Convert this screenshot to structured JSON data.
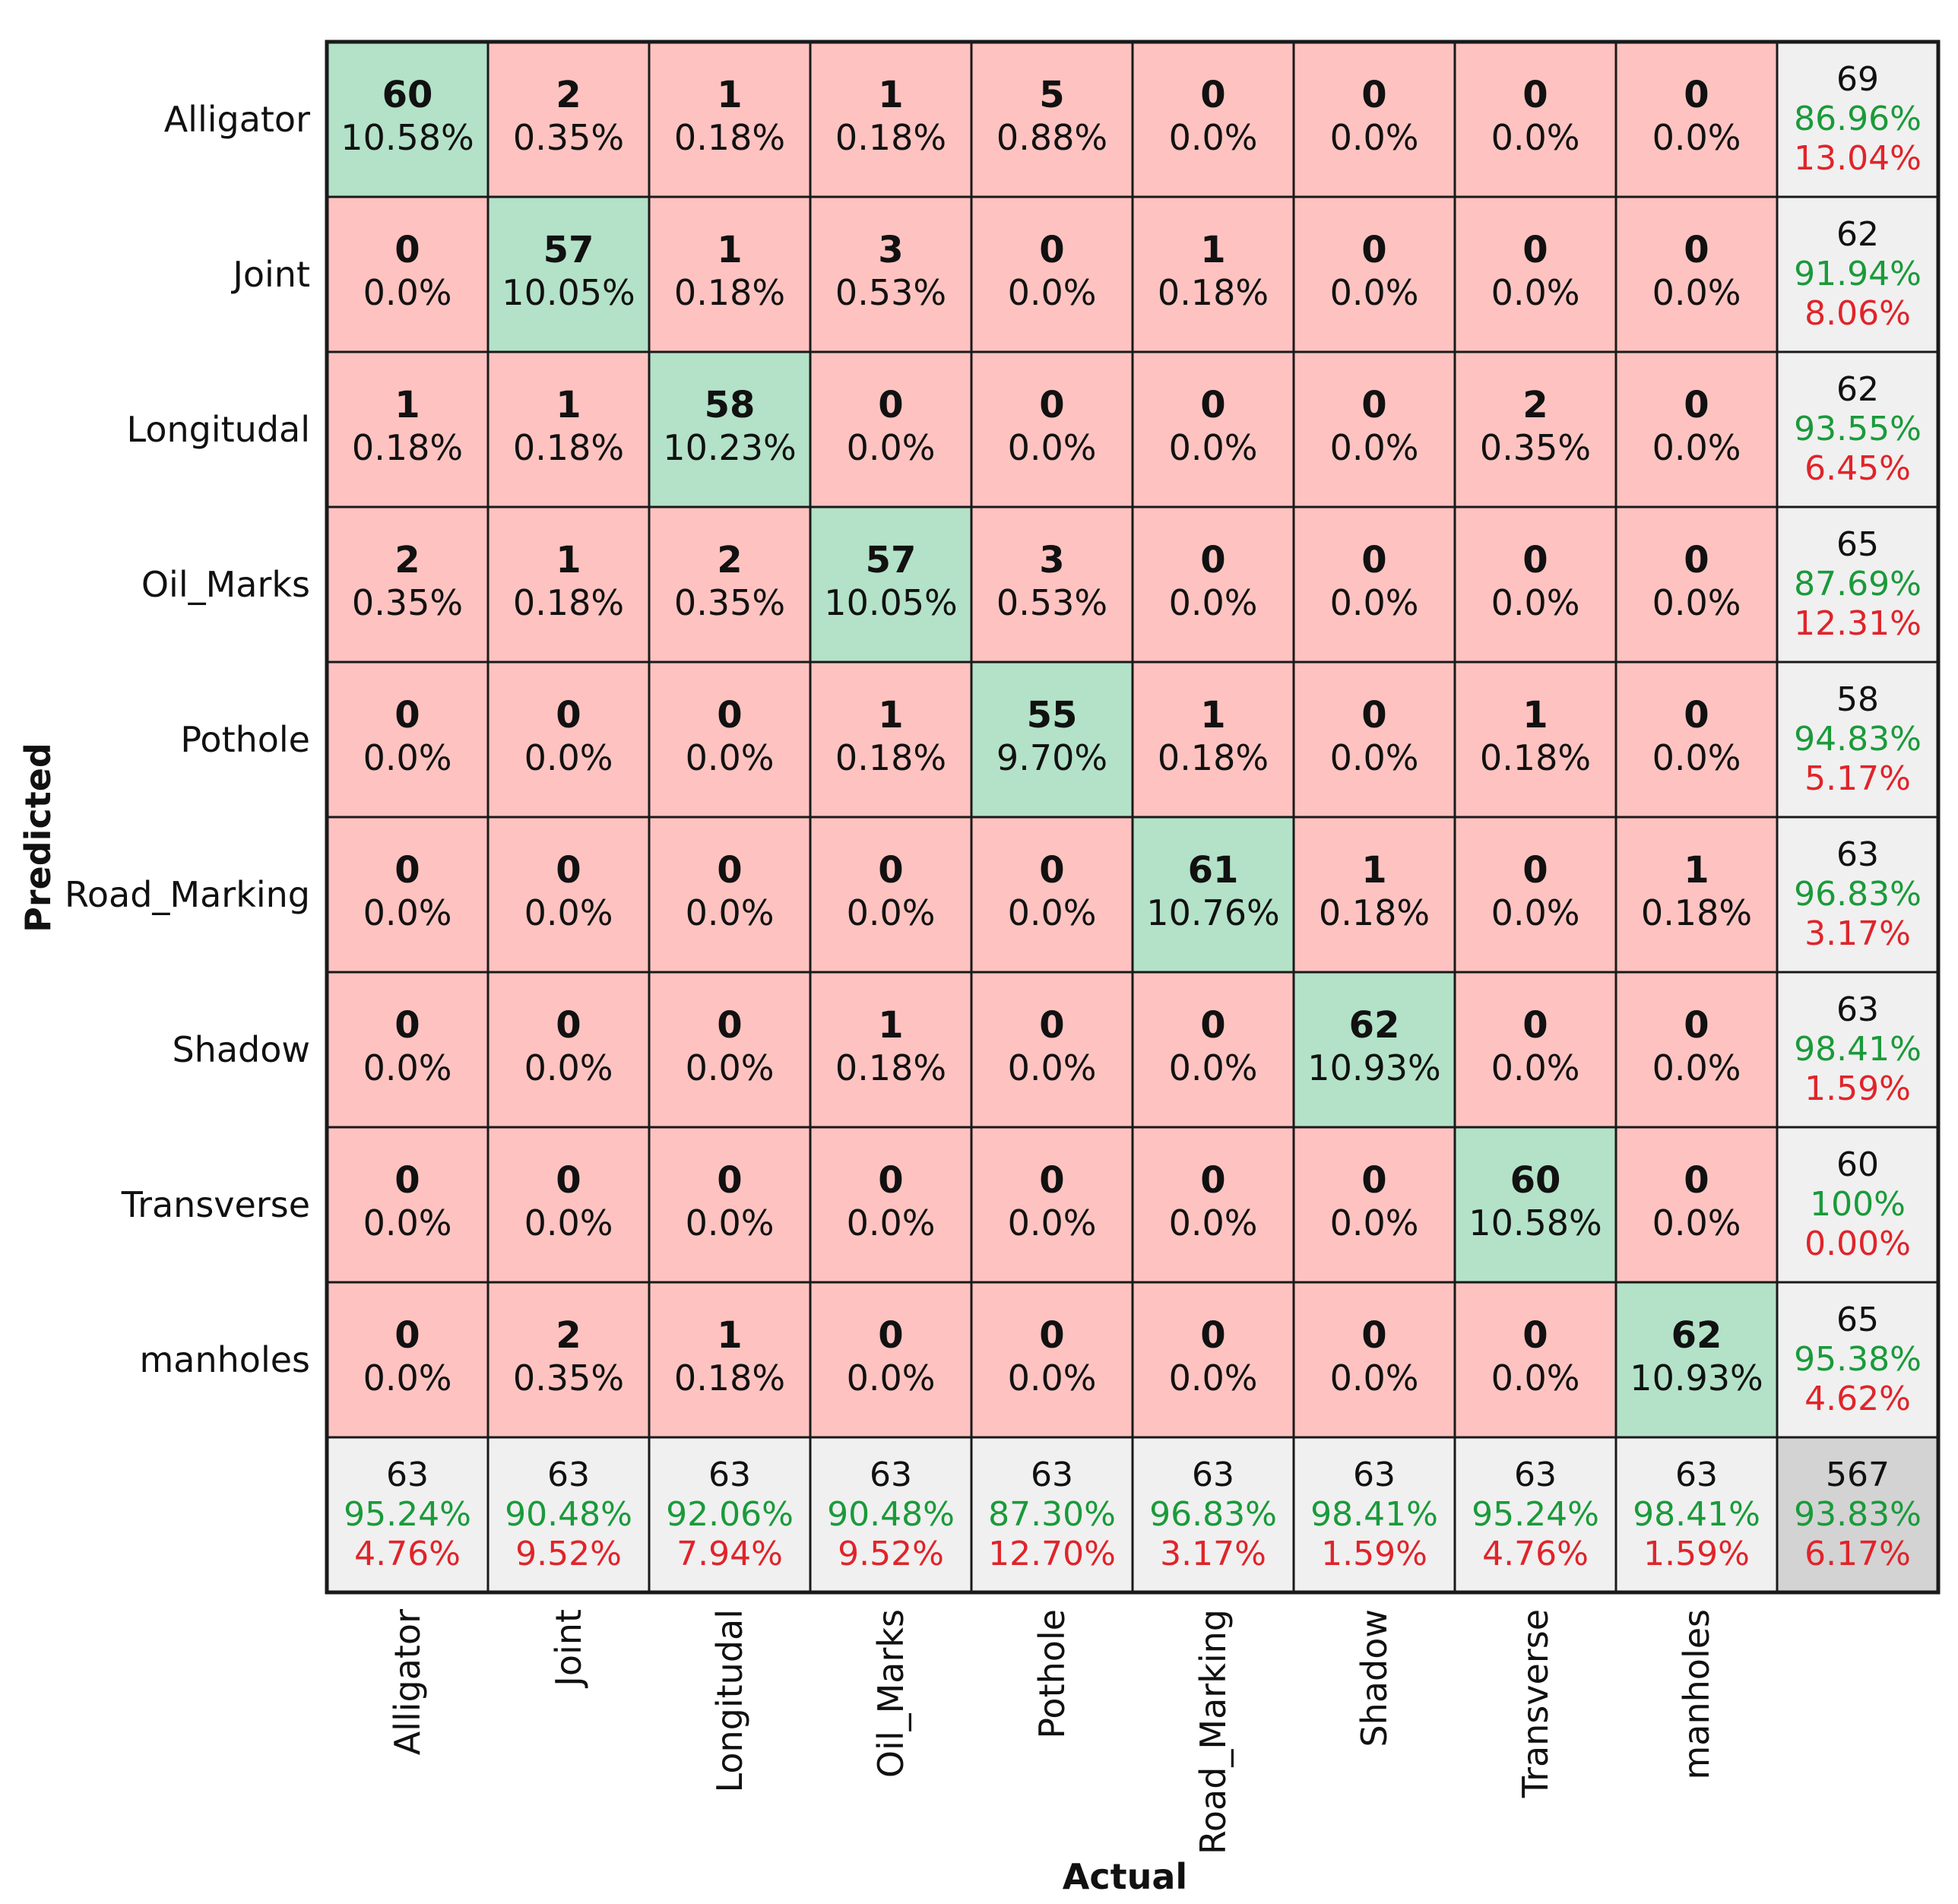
{
  "chart_data": {
    "type": "heatmap",
    "subtype": "confusion-matrix",
    "title": "",
    "xlabel": "Actual",
    "ylabel": "Predicted",
    "labels": [
      "Alligator",
      "Joint",
      "Longitudal",
      "Oil_Marks",
      "Pothole",
      "Road_Marking",
      "Shadow",
      "Transverse",
      "manholes"
    ],
    "matrix": [
      [
        60,
        2,
        1,
        1,
        5,
        0,
        0,
        0,
        0
      ],
      [
        0,
        57,
        1,
        3,
        0,
        1,
        0,
        0,
        0
      ],
      [
        1,
        1,
        58,
        0,
        0,
        0,
        0,
        2,
        0
      ],
      [
        2,
        1,
        2,
        57,
        3,
        0,
        0,
        0,
        0
      ],
      [
        0,
        0,
        0,
        1,
        55,
        1,
        0,
        1,
        0
      ],
      [
        0,
        0,
        0,
        0,
        0,
        61,
        1,
        0,
        1
      ],
      [
        0,
        0,
        0,
        1,
        0,
        0,
        62,
        0,
        0
      ],
      [
        0,
        0,
        0,
        0,
        0,
        0,
        0,
        60,
        0
      ],
      [
        0,
        2,
        1,
        0,
        0,
        0,
        0,
        0,
        62
      ]
    ],
    "cell_percents": [
      [
        "10.58%",
        "0.35%",
        "0.18%",
        "0.18%",
        "0.88%",
        "0.0%",
        "0.0%",
        "0.0%",
        "0.0%"
      ],
      [
        "0.0%",
        "10.05%",
        "0.18%",
        "0.53%",
        "0.0%",
        "0.18%",
        "0.0%",
        "0.0%",
        "0.0%"
      ],
      [
        "0.18%",
        "0.18%",
        "10.23%",
        "0.0%",
        "0.0%",
        "0.0%",
        "0.0%",
        "0.35%",
        "0.0%"
      ],
      [
        "0.35%",
        "0.18%",
        "0.35%",
        "10.05%",
        "0.53%",
        "0.0%",
        "0.0%",
        "0.0%",
        "0.0%"
      ],
      [
        "0.0%",
        "0.0%",
        "0.0%",
        "0.18%",
        "9.70%",
        "0.18%",
        "0.0%",
        "0.18%",
        "0.0%"
      ],
      [
        "0.0%",
        "0.0%",
        "0.0%",
        "0.0%",
        "0.0%",
        "10.76%",
        "0.18%",
        "0.0%",
        "0.18%"
      ],
      [
        "0.0%",
        "0.0%",
        "0.0%",
        "0.18%",
        "0.0%",
        "0.0%",
        "10.93%",
        "0.0%",
        "0.0%"
      ],
      [
        "0.0%",
        "0.0%",
        "0.0%",
        "0.0%",
        "0.0%",
        "0.0%",
        "0.0%",
        "10.58%",
        "0.0%"
      ],
      [
        "0.0%",
        "0.35%",
        "0.18%",
        "0.0%",
        "0.0%",
        "0.0%",
        "0.0%",
        "0.0%",
        "10.93%"
      ]
    ],
    "row_summary": [
      {
        "total": "69",
        "correct": "86.96%",
        "error": "13.04%"
      },
      {
        "total": "62",
        "correct": "91.94%",
        "error": "8.06%"
      },
      {
        "total": "62",
        "correct": "93.55%",
        "error": "6.45%"
      },
      {
        "total": "65",
        "correct": "87.69%",
        "error": "12.31%"
      },
      {
        "total": "58",
        "correct": "94.83%",
        "error": "5.17%"
      },
      {
        "total": "63",
        "correct": "96.83%",
        "error": "3.17%"
      },
      {
        "total": "63",
        "correct": "98.41%",
        "error": "1.59%"
      },
      {
        "total": "60",
        "correct": "100%",
        "error": "0.00%"
      },
      {
        "total": "65",
        "correct": "95.38%",
        "error": "4.62%"
      }
    ],
    "col_summary": [
      {
        "total": "63",
        "correct": "95.24%",
        "error": "4.76%"
      },
      {
        "total": "63",
        "correct": "90.48%",
        "error": "9.52%"
      },
      {
        "total": "63",
        "correct": "92.06%",
        "error": "7.94%"
      },
      {
        "total": "63",
        "correct": "90.48%",
        "error": "9.52%"
      },
      {
        "total": "63",
        "correct": "87.30%",
        "error": "12.70%"
      },
      {
        "total": "63",
        "correct": "96.83%",
        "error": "3.17%"
      },
      {
        "total": "63",
        "correct": "98.41%",
        "error": "1.59%"
      },
      {
        "total": "63",
        "correct": "95.24%",
        "error": "4.76%"
      },
      {
        "total": "63",
        "correct": "98.41%",
        "error": "1.59%"
      }
    ],
    "overall": {
      "total": "567",
      "correct": "93.83%",
      "error": "6.17%"
    },
    "colors": {
      "diagonal": "#b3e2c8",
      "off_diagonal": "#fec3c0",
      "summary": "#f0f0f0",
      "overall": "#d3d3d3",
      "correct_text": "#1a9a3a",
      "error_text": "#e0242a",
      "grid": "#1a1a1a",
      "text": "#111111"
    }
  }
}
